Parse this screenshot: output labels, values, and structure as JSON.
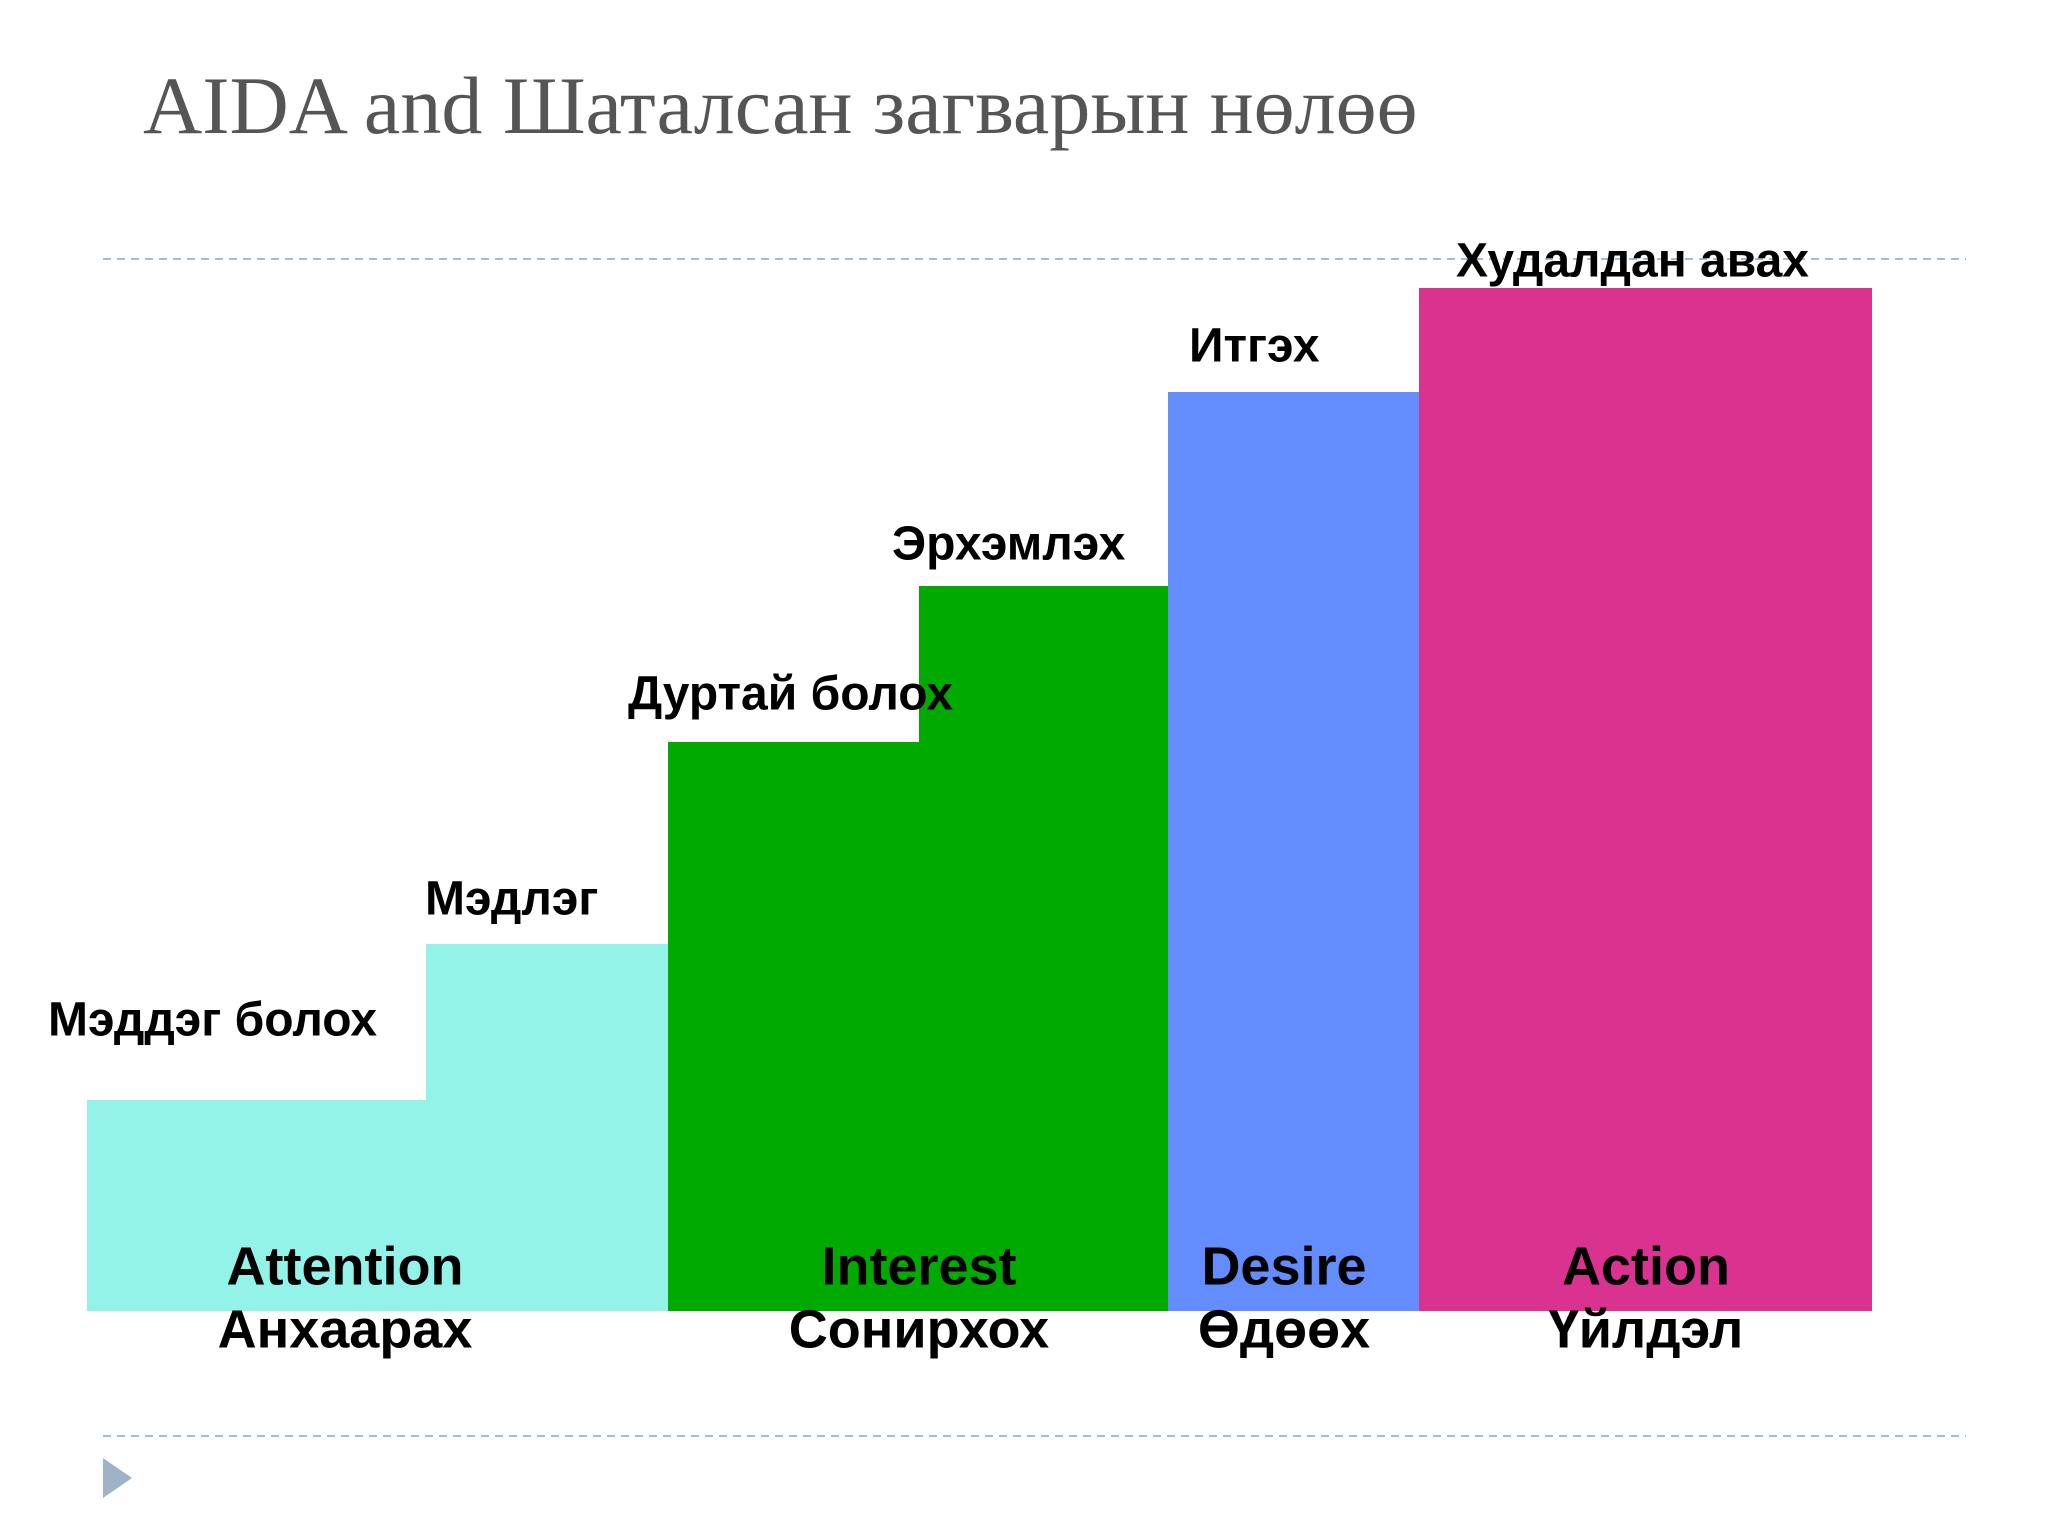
{
  "title": "AIDA and Шаталсан загварын нөлөө",
  "steps": [
    {
      "label": "Мэддэг болох"
    },
    {
      "label": "Мэдлэг"
    },
    {
      "label": "Дуртай болох"
    },
    {
      "label": "Эрхэмлэх"
    },
    {
      "label": "Итгэх"
    },
    {
      "label": "Худалдан авах"
    }
  ],
  "stages": [
    {
      "name": "Attention",
      "translation": "Анхаарах"
    },
    {
      "name": "Interest",
      "translation": "Сонирхох"
    },
    {
      "name": "Desire",
      "translation": "Өдөөх"
    },
    {
      "name": "Action",
      "translation": "Үйлдэл"
    }
  ]
}
